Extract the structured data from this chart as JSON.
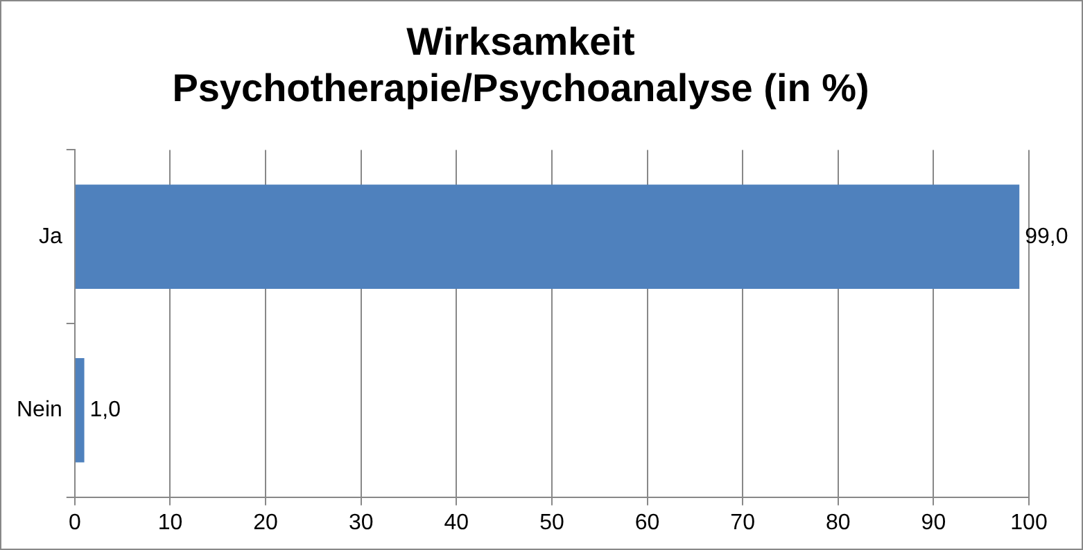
{
  "chart_data": {
    "type": "bar",
    "orientation": "horizontal",
    "title": "Wirksamkeit\nPsychotherapie/Psychoanalyse (in %)",
    "categories": [
      "Ja",
      "Nein"
    ],
    "values": [
      99.0,
      1.0
    ],
    "value_labels": [
      "99,0",
      "1,0"
    ],
    "color": "#4f81bd",
    "xlim": [
      0,
      100
    ],
    "xticks": [
      0,
      10,
      20,
      30,
      40,
      50,
      60,
      70,
      80,
      90,
      100
    ],
    "grid": "x",
    "legend": false
  }
}
